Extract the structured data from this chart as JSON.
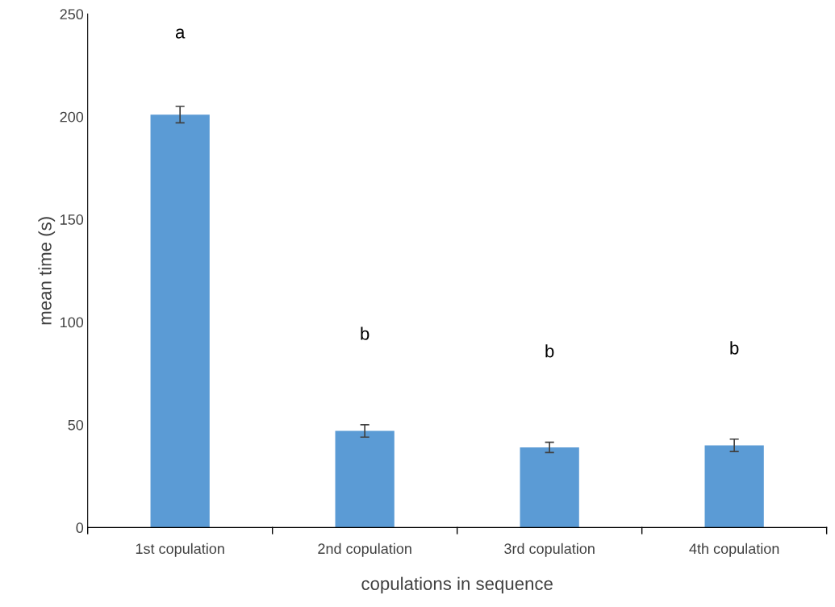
{
  "chart_data": {
    "type": "bar",
    "xlabel": "copulations in sequence",
    "ylabel": "mean time (s)",
    "categories": [
      "1st copulation",
      "2nd copulation",
      "3rd copulation",
      "4th copulation"
    ],
    "values": [
      201,
      47,
      39,
      40
    ],
    "errors": [
      4,
      3,
      2.5,
      3
    ],
    "color": "#5b9bd5",
    "ylim": [
      0,
      250
    ],
    "yticks": [
      0,
      50,
      100,
      150,
      200,
      250
    ],
    "grid": false,
    "legend": false,
    "annotations": [
      "a",
      "b",
      "b",
      "b"
    ]
  }
}
